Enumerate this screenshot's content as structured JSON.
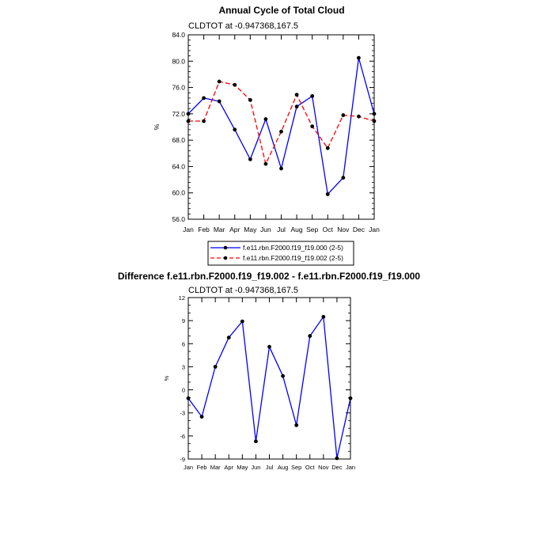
{
  "chart_data": [
    {
      "type": "line",
      "title": "Annual Cycle of Total Cloud",
      "subtitle": "CLDTOT at -0.947368,167.5",
      "xlabel": "",
      "ylabel": "%",
      "categories": [
        "Jan",
        "Feb",
        "Mar",
        "Apr",
        "May",
        "Jun",
        "Jul",
        "Aug",
        "Sep",
        "Oct",
        "Nov",
        "Dec",
        "Jan"
      ],
      "yticks": [
        "84.0",
        "80.0",
        "76.0",
        "72.0",
        "68.0",
        "64.0",
        "60.0",
        "56.0"
      ],
      "ylim": [
        56,
        84
      ],
      "series": [
        {
          "name": "f.e11.rbn.F2000.f19_f19.000 (2-5)",
          "color": "#0000ff",
          "dash": "solid",
          "values": [
            72.0,
            74.4,
            73.9,
            69.6,
            65.1,
            71.2,
            63.7,
            73.1,
            74.7,
            59.8,
            62.3,
            80.5,
            72.0
          ]
        },
        {
          "name": "f.e11.rbn.F2000.f19_f19.002 (2-5)",
          "color": "#ff0000",
          "dash": "dashed",
          "values": [
            70.9,
            70.9,
            76.9,
            76.4,
            74.1,
            64.4,
            69.3,
            74.9,
            70.1,
            66.8,
            71.8,
            71.6,
            70.9
          ]
        }
      ],
      "legend_position": "bottom",
      "grid": false
    },
    {
      "type": "line",
      "title": "Difference f.e11.rbn.F2000.f19_f19.002 - f.e11.rbn.F2000.f19_f19.000",
      "subtitle": "CLDTOT at -0.947368,167.5",
      "xlabel": "",
      "ylabel": "%",
      "categories": [
        "Jan",
        "Feb",
        "Mar",
        "Apr",
        "May",
        "Jun",
        "Jul",
        "Aug",
        "Sep",
        "Oct",
        "Nov",
        "Dec",
        "Jan"
      ],
      "yticks": [
        "12",
        "9",
        "6",
        "3",
        "0",
        "-3",
        "-6",
        "-9"
      ],
      "ylim": [
        -9,
        12
      ],
      "series": [
        {
          "color": "#0000ff",
          "dash": "solid",
          "values": [
            -1.1,
            -3.5,
            3.0,
            6.8,
            8.9,
            -6.7,
            5.6,
            1.8,
            -4.6,
            7.0,
            9.5,
            -8.9,
            -1.1
          ]
        }
      ],
      "grid": false
    }
  ]
}
